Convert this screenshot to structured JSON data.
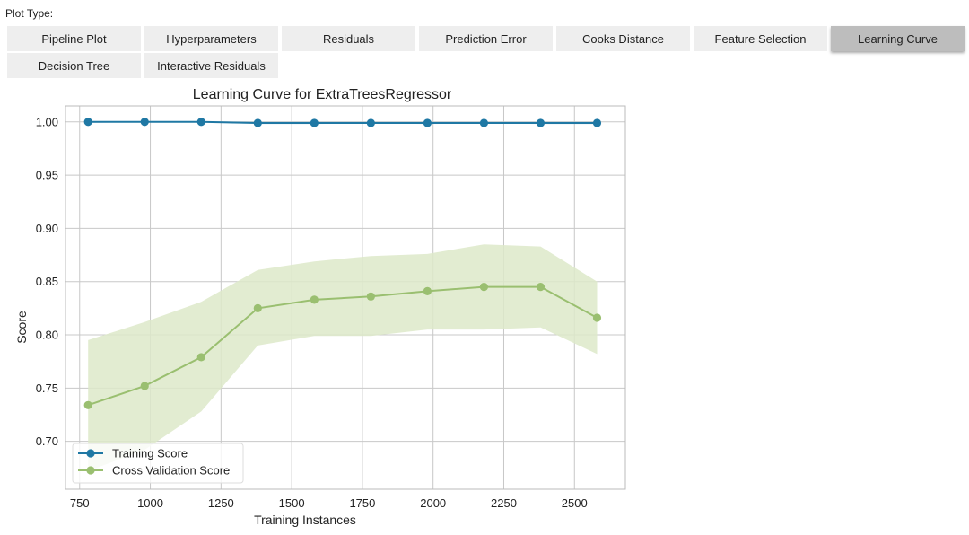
{
  "plot_type_label": "Plot Type:",
  "buttons": [
    {
      "label": "Pipeline Plot",
      "active": false
    },
    {
      "label": "Hyperparameters",
      "active": false
    },
    {
      "label": "Residuals",
      "active": false
    },
    {
      "label": "Prediction Error",
      "active": false
    },
    {
      "label": "Cooks Distance",
      "active": false
    },
    {
      "label": "Feature Selection",
      "active": false
    },
    {
      "label": "Learning Curve",
      "active": true
    },
    {
      "label": "Decision Tree",
      "active": false
    },
    {
      "label": "Interactive Residuals",
      "active": false
    }
  ],
  "colors": {
    "training": "#1f78a4",
    "cv": "#9abf70",
    "cv_band": "#dde9c9",
    "grid": "#c8c8c8",
    "axes_border": "#bbbbbb"
  },
  "chart_data": {
    "type": "line",
    "title": "Learning Curve for ExtraTreesRegressor",
    "xlabel": "Training Instances",
    "ylabel": "Score",
    "xlim": [
      700,
      2680
    ],
    "ylim": [
      0.655,
      1.015
    ],
    "xticks": [
      750,
      1000,
      1250,
      1500,
      1750,
      2000,
      2250,
      2500
    ],
    "xtick_labels": [
      "750",
      "1000",
      "1250",
      "1500",
      "1750",
      "2000",
      "2250",
      "2500"
    ],
    "yticks": [
      0.7,
      0.75,
      0.8,
      0.85,
      0.9,
      0.95,
      1.0
    ],
    "ytick_labels": [
      "0.70",
      "0.75",
      "0.80",
      "0.85",
      "0.90",
      "0.95",
      "1.00"
    ],
    "grid": true,
    "legend_position": "lower-left",
    "x": [
      780,
      980,
      1180,
      1380,
      1580,
      1780,
      1980,
      2180,
      2380,
      2580
    ],
    "series": [
      {
        "name": "Training Score",
        "values": [
          1.0,
          1.0,
          1.0,
          0.999,
          0.999,
          0.999,
          0.999,
          0.999,
          0.999,
          0.999
        ],
        "band_upper": [
          1.0,
          1.0,
          1.0,
          1.0,
          1.0,
          1.0,
          1.0,
          1.0,
          1.0,
          1.0
        ],
        "band_lower": [
          0.999,
          1.0,
          1.0,
          0.998,
          0.998,
          0.999,
          0.998,
          0.999,
          0.998,
          0.998
        ]
      },
      {
        "name": "Cross Validation Score",
        "values": [
          0.734,
          0.752,
          0.779,
          0.825,
          0.833,
          0.836,
          0.841,
          0.845,
          0.845,
          0.816
        ],
        "band_upper": [
          0.795,
          0.812,
          0.831,
          0.861,
          0.869,
          0.874,
          0.876,
          0.885,
          0.883,
          0.85
        ],
        "band_lower": [
          0.672,
          0.692,
          0.728,
          0.79,
          0.799,
          0.799,
          0.805,
          0.805,
          0.807,
          0.782
        ]
      }
    ]
  }
}
